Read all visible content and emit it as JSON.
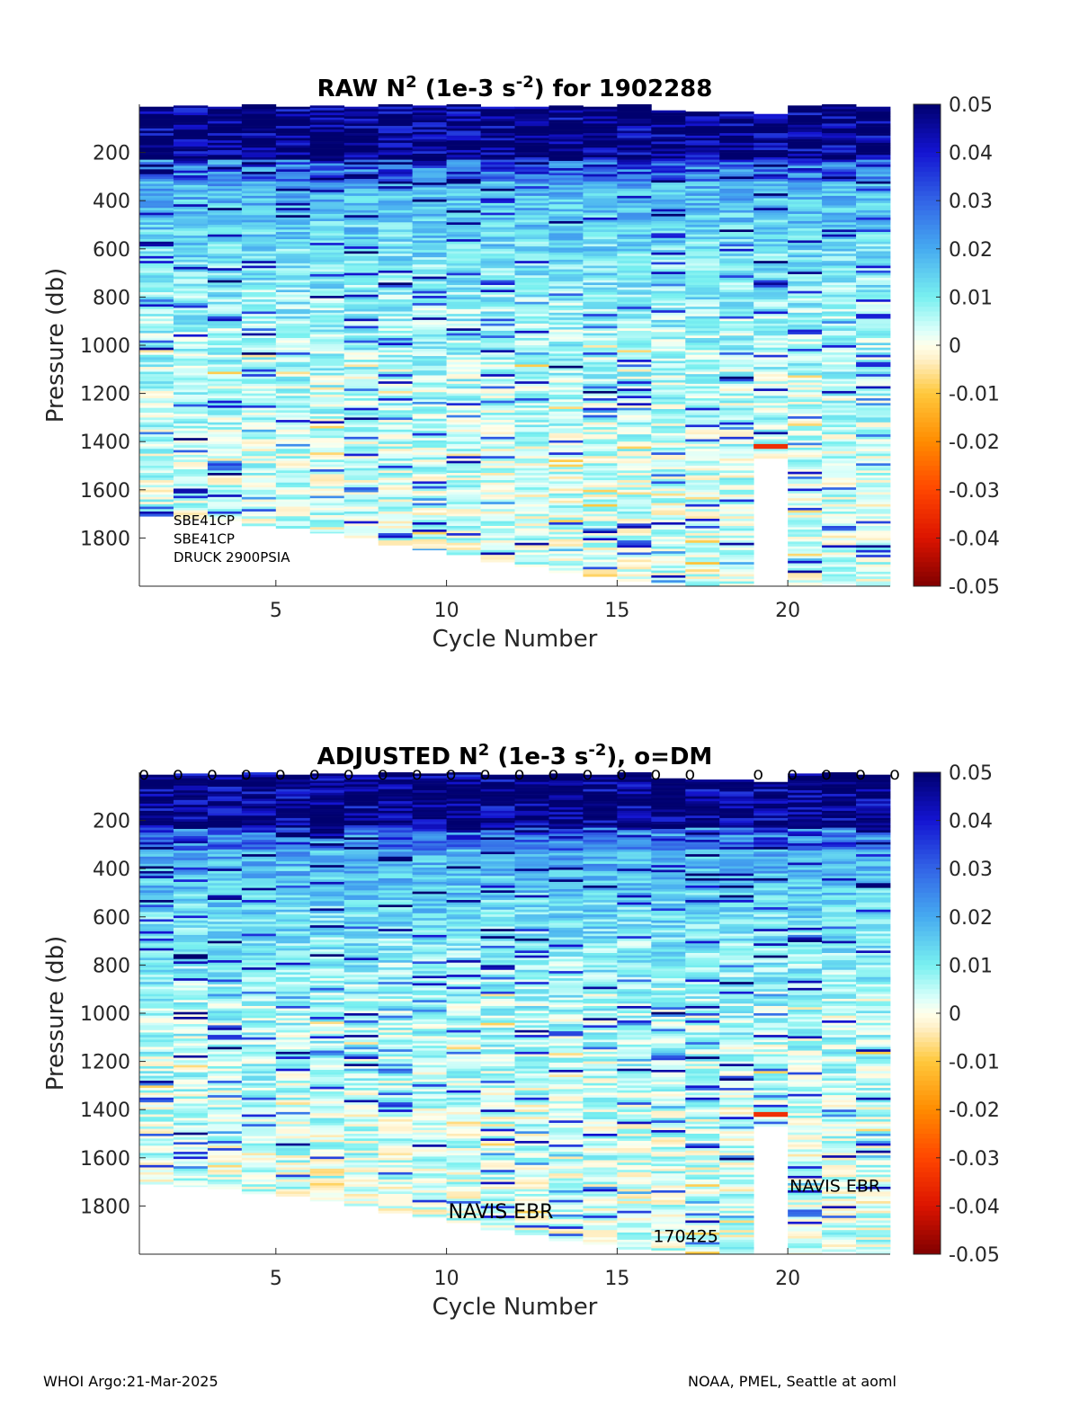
{
  "chart_data": [
    {
      "type": "heatmap",
      "title_parts": [
        "RAW N",
        "2",
        " (1e-3 s",
        "-2",
        ") for 1902288"
      ],
      "xlabel": "Cycle Number",
      "ylabel": "Pressure (db)",
      "xlim": [
        1,
        23
      ],
      "ylim": [
        0,
        2000
      ],
      "y_reversed": true,
      "xticks": [
        5,
        10,
        15,
        20
      ],
      "yticks": [
        200,
        400,
        600,
        800,
        1000,
        1200,
        1400,
        1600,
        1800
      ],
      "colorbar": {
        "min": -0.05,
        "max": 0.05,
        "ticks": [
          0.05,
          0.04,
          0.03,
          0.02,
          0.01,
          0,
          -0.01,
          -0.02,
          -0.03,
          -0.04,
          -0.05
        ],
        "colormap": "jet-like with white near zero"
      },
      "cycles": [
        1,
        2,
        3,
        4,
        5,
        6,
        7,
        8,
        9,
        10,
        11,
        12,
        13,
        14,
        15,
        16,
        17,
        18,
        19,
        20,
        21,
        22
      ],
      "top_pressure": [
        10,
        5,
        10,
        0,
        10,
        5,
        10,
        0,
        5,
        0,
        10,
        10,
        5,
        10,
        0,
        25,
        30,
        30,
        40,
        5,
        0,
        10
      ],
      "max_pressure": [
        1710,
        1720,
        1730,
        1750,
        1760,
        1780,
        1800,
        1830,
        1850,
        1870,
        1900,
        1920,
        1945,
        1960,
        1980,
        1990,
        2000,
        2000,
        1470,
        2000,
        1990,
        2000
      ],
      "annotations": [
        "SBE41CP",
        "SBE41CP",
        "DRUCK 2900PSIA"
      ]
    },
    {
      "type": "heatmap",
      "title_parts": [
        "ADJUSTED N",
        "2",
        " (1e-3 s",
        "-2",
        "), o=DM"
      ],
      "xlabel": "Cycle Number",
      "ylabel": "Pressure (db)",
      "xlim": [
        1,
        23
      ],
      "ylim": [
        0,
        2000
      ],
      "y_reversed": true,
      "xticks": [
        5,
        10,
        15,
        20
      ],
      "yticks": [
        200,
        400,
        600,
        800,
        1000,
        1200,
        1400,
        1600,
        1800
      ],
      "colorbar": {
        "min": -0.05,
        "max": 0.05,
        "ticks": [
          0.05,
          0.04,
          0.03,
          0.02,
          0.01,
          0,
          -0.01,
          -0.02,
          -0.03,
          -0.04,
          -0.05
        ],
        "colormap": "jet-like with white near zero"
      },
      "cycles": [
        1,
        2,
        3,
        4,
        5,
        6,
        7,
        8,
        9,
        10,
        11,
        12,
        13,
        14,
        15,
        16,
        17,
        18,
        19,
        20,
        21,
        22
      ],
      "top_pressure": [
        10,
        5,
        10,
        0,
        10,
        5,
        10,
        0,
        5,
        0,
        10,
        10,
        5,
        10,
        0,
        25,
        30,
        30,
        40,
        5,
        0,
        10
      ],
      "max_pressure": [
        1710,
        1720,
        1730,
        1750,
        1760,
        1780,
        1800,
        1830,
        1850,
        1870,
        1900,
        1920,
        1945,
        1960,
        1980,
        1990,
        2000,
        2000,
        1470,
        2000,
        1990,
        2000
      ],
      "dm_marker": "o",
      "dm_cycles": [
        1,
        2,
        3,
        4,
        5,
        6,
        7,
        8,
        9,
        10,
        11,
        12,
        13,
        14,
        15,
        16,
        17,
        19,
        20,
        21,
        22,
        23
      ],
      "annotations": [
        {
          "text": "NAVIS EBR",
          "x": 10,
          "y": 1820
        },
        {
          "text": "170425",
          "x": 16,
          "y": 1920
        },
        {
          "text": "NAVIS EBR",
          "x": 20,
          "y": 1710
        }
      ]
    }
  ],
  "footer": {
    "left": "WHOI Argo:21-Mar-2025",
    "right": "NOAA, PMEL, Seattle at aoml"
  }
}
